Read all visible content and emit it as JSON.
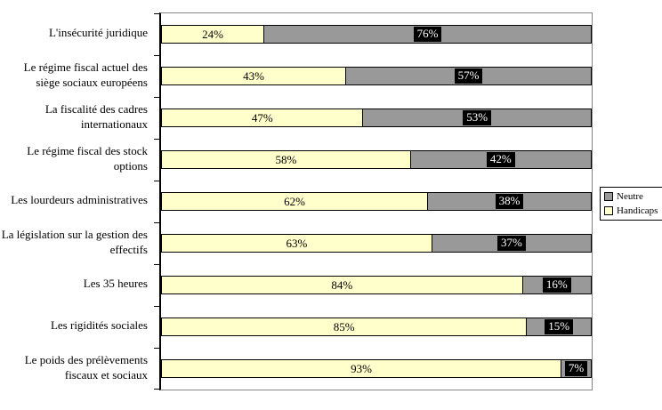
{
  "chart_data": {
    "type": "bar",
    "orientation": "horizontal",
    "stacked": true,
    "value_suffix": "%",
    "gridlines": false,
    "axis": {
      "x_range": [
        0,
        100
      ]
    },
    "categories": [
      "L'insécurité juridique",
      "Le régime fiscal actuel des siège sociaux européens",
      "La fiscalité des cadres internationaux",
      "Le régime fiscal des stock options",
      "Les lourdeurs administratives",
      "La législation sur la gestion des effectifs",
      "Les 35 heures",
      "Les rigidités sociales",
      "Le poids des prélèvements fiscaux et sociaux"
    ],
    "series": [
      {
        "name": "Handicaps",
        "color": "#FFFFCC",
        "text_color": "#000000",
        "label_style": "plain",
        "values": [
          24,
          43,
          47,
          58,
          62,
          63,
          84,
          85,
          93
        ]
      },
      {
        "name": "Neutre",
        "color": "#999999",
        "text_color": "#FFFFFF",
        "label_style": "boxed",
        "label_bg": "#000000",
        "values": [
          76,
          57,
          53,
          42,
          38,
          37,
          16,
          15,
          7
        ]
      }
    ],
    "legend": {
      "position": "right",
      "entries": [
        {
          "label": "Neutre",
          "color": "#999999"
        },
        {
          "label": "Handicaps",
          "color": "#FFFFCC"
        }
      ]
    }
  }
}
